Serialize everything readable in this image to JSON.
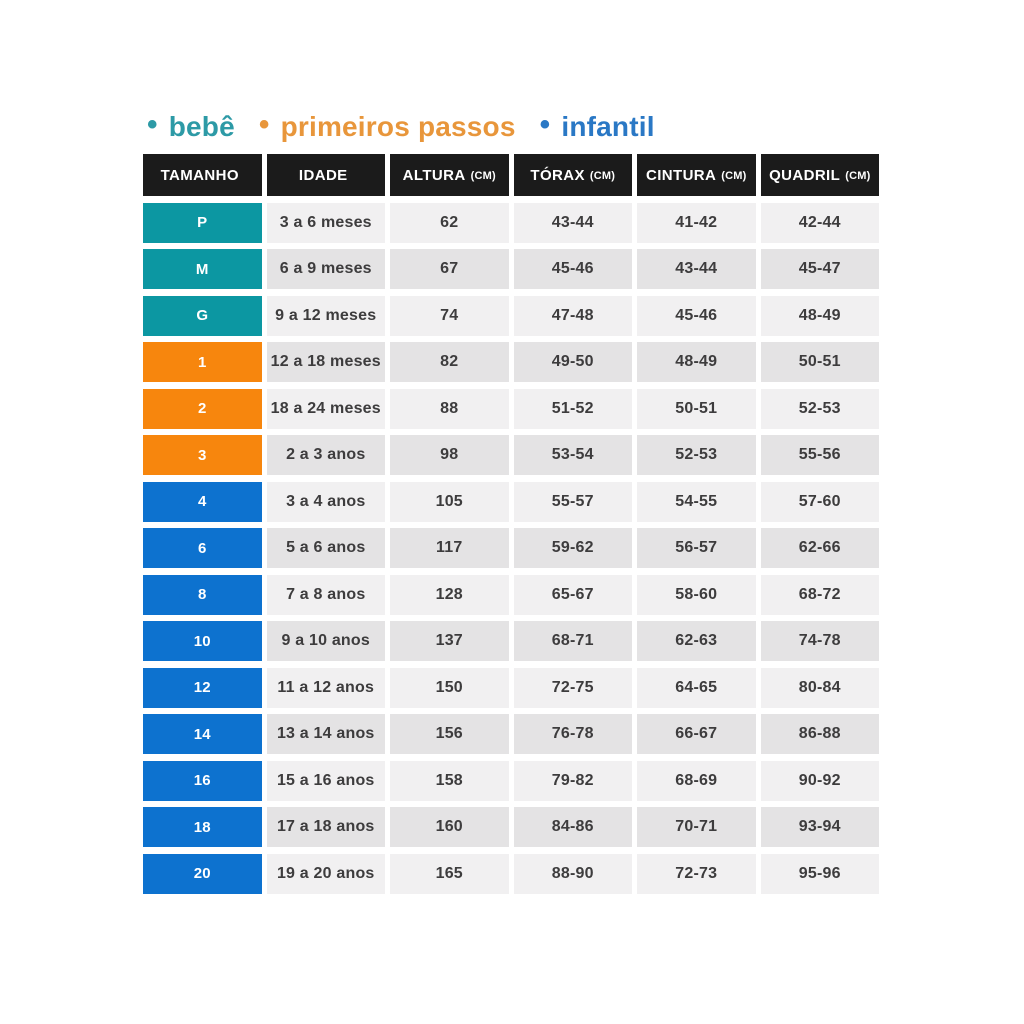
{
  "legend": {
    "bullet": "•",
    "items": [
      {
        "label": "bebê",
        "color": "#2d9aa6"
      },
      {
        "label": "primeiros passos",
        "color": "#e8963b"
      },
      {
        "label": "infantil",
        "color": "#2a78c5"
      }
    ]
  },
  "colors": {
    "header_bg": "#1b1b1b",
    "header_text": "#ffffff",
    "row_light": "#f1f0f1",
    "row_dark": "#e4e3e4",
    "cell_text": "#3d3c3d",
    "groups": {
      "bebe": "#0c97a2",
      "primeiros_passos": "#f7860d",
      "infantil": "#0d72cf"
    }
  },
  "table": {
    "headers": [
      {
        "label": "TAMANHO",
        "unit": ""
      },
      {
        "label": "IDADE",
        "unit": ""
      },
      {
        "label": "ALTURA",
        "unit": "(CM)"
      },
      {
        "label": "TÓRAX",
        "unit": "(CM)"
      },
      {
        "label": "CINTURA",
        "unit": "(CM)"
      },
      {
        "label": "QUADRIL",
        "unit": "(CM)"
      }
    ],
    "cell_names": [
      "idade-cell",
      "altura-cell",
      "torax-cell",
      "cintura-cell",
      "quadril-cell"
    ],
    "rows": [
      {
        "size": "P",
        "group": "bebe",
        "cells": [
          "3 a 6 meses",
          "62",
          "43-44",
          "41-42",
          "42-44"
        ]
      },
      {
        "size": "M",
        "group": "bebe",
        "cells": [
          "6 a 9 meses",
          "67",
          "45-46",
          "43-44",
          "45-47"
        ]
      },
      {
        "size": "G",
        "group": "bebe",
        "cells": [
          "9 a 12 meses",
          "74",
          "47-48",
          "45-46",
          "48-49"
        ]
      },
      {
        "size": "1",
        "group": "primeiros_passos",
        "cells": [
          "12 a 18 meses",
          "82",
          "49-50",
          "48-49",
          "50-51"
        ]
      },
      {
        "size": "2",
        "group": "primeiros_passos",
        "cells": [
          "18 a 24 meses",
          "88",
          "51-52",
          "50-51",
          "52-53"
        ]
      },
      {
        "size": "3",
        "group": "primeiros_passos",
        "cells": [
          "2 a 3 anos",
          "98",
          "53-54",
          "52-53",
          "55-56"
        ]
      },
      {
        "size": "4",
        "group": "infantil",
        "cells": [
          "3 a 4 anos",
          "105",
          "55-57",
          "54-55",
          "57-60"
        ]
      },
      {
        "size": "6",
        "group": "infantil",
        "cells": [
          "5 a 6 anos",
          "117",
          "59-62",
          "56-57",
          "62-66"
        ]
      },
      {
        "size": "8",
        "group": "infantil",
        "cells": [
          "7 a 8 anos",
          "128",
          "65-67",
          "58-60",
          "68-72"
        ]
      },
      {
        "size": "10",
        "group": "infantil",
        "cells": [
          "9 a 10 anos",
          "137",
          "68-71",
          "62-63",
          "74-78"
        ]
      },
      {
        "size": "12",
        "group": "infantil",
        "cells": [
          "11 a 12 anos",
          "150",
          "72-75",
          "64-65",
          "80-84"
        ]
      },
      {
        "size": "14",
        "group": "infantil",
        "cells": [
          "13 a 14 anos",
          "156",
          "76-78",
          "66-67",
          "86-88"
        ]
      },
      {
        "size": "16",
        "group": "infantil",
        "cells": [
          "15 a 16 anos",
          "158",
          "79-82",
          "68-69",
          "90-92"
        ]
      },
      {
        "size": "18",
        "group": "infantil",
        "cells": [
          "17 a 18 anos",
          "160",
          "84-86",
          "70-71",
          "93-94"
        ]
      },
      {
        "size": "20",
        "group": "infantil",
        "cells": [
          "19 a 20 anos",
          "165",
          "88-90",
          "72-73",
          "95-96"
        ]
      }
    ]
  },
  "chart_data": {
    "type": "table",
    "title": "",
    "legend": [
      "bebê",
      "primeiros passos",
      "infantil"
    ],
    "columns": [
      "TAMANHO",
      "IDADE",
      "ALTURA (CM)",
      "TÓRAX (CM)",
      "CINTURA (CM)",
      "QUADRIL (CM)"
    ],
    "rows": [
      [
        "P",
        "3 a 6 meses",
        "62",
        "43-44",
        "41-42",
        "42-44"
      ],
      [
        "M",
        "6 a 9 meses",
        "67",
        "45-46",
        "43-44",
        "45-47"
      ],
      [
        "G",
        "9 a 12 meses",
        "74",
        "47-48",
        "45-46",
        "48-49"
      ],
      [
        "1",
        "12 a 18 meses",
        "82",
        "49-50",
        "48-49",
        "50-51"
      ],
      [
        "2",
        "18 a 24 meses",
        "88",
        "51-52",
        "50-51",
        "52-53"
      ],
      [
        "3",
        "2 a 3 anos",
        "98",
        "53-54",
        "52-53",
        "55-56"
      ],
      [
        "4",
        "3 a 4 anos",
        "105",
        "55-57",
        "54-55",
        "57-60"
      ],
      [
        "6",
        "5 a 6 anos",
        "117",
        "59-62",
        "56-57",
        "62-66"
      ],
      [
        "8",
        "7 a 8 anos",
        "128",
        "65-67",
        "58-60",
        "68-72"
      ],
      [
        "10",
        "9 a 10 anos",
        "137",
        "68-71",
        "62-63",
        "74-78"
      ],
      [
        "12",
        "11 a 12 anos",
        "150",
        "72-75",
        "64-65",
        "80-84"
      ],
      [
        "14",
        "13 a 14 anos",
        "156",
        "76-78",
        "66-67",
        "86-88"
      ],
      [
        "16",
        "15 a 16 anos",
        "158",
        "79-82",
        "68-69",
        "90-92"
      ],
      [
        "18",
        "17 a 18 anos",
        "160",
        "84-86",
        "70-71",
        "93-94"
      ],
      [
        "20",
        "19 a 20 anos",
        "165",
        "88-90",
        "72-73",
        "95-96"
      ]
    ]
  }
}
